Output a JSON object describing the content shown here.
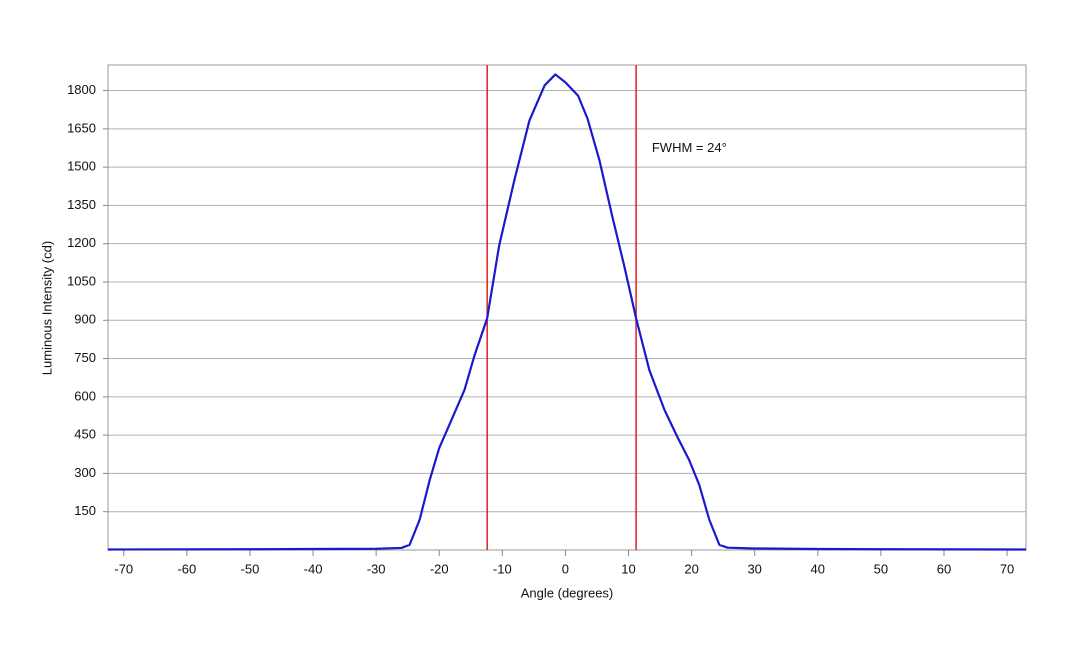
{
  "chart_data": {
    "type": "line",
    "x_label": "Angle (degrees)",
    "y_label": "Luminous Intensity (cd)",
    "x": [
      -72.5,
      -50,
      -40,
      -30,
      -26,
      -24.7,
      -23.1,
      -21.5,
      -20,
      -18.4,
      -16,
      -14.4,
      -12.4,
      -10.5,
      -8.1,
      -5.7,
      -3.3,
      -1.6,
      0,
      2,
      3.5,
      5.4,
      7.4,
      9.3,
      11.2,
      13.3,
      15.7,
      17.6,
      19.6,
      21.2,
      22.8,
      24.4,
      25.7,
      30,
      40,
      50,
      73
    ],
    "series": [
      {
        "color": "#1a1acc",
        "values": [
          2,
          3,
          4,
          5,
          8,
          20,
          119,
          275,
          400,
          490,
          627,
          763,
          908,
          1193,
          1448,
          1683,
          1820,
          1863,
          1832,
          1780,
          1690,
          1526,
          1310,
          1115,
          908,
          705,
          549,
          450,
          353,
          256,
          119,
          20,
          9,
          6,
          4,
          3,
          2
        ]
      }
    ],
    "xlim": [
      -72.5,
      73
    ],
    "ylim": [
      0,
      1900
    ],
    "xticks": [
      -70,
      -60,
      -50,
      -40,
      -30,
      -20,
      -10,
      0,
      10,
      20,
      30,
      40,
      50,
      60,
      70
    ],
    "yticks": [
      150,
      300,
      450,
      600,
      750,
      900,
      1050,
      1200,
      1350,
      1500,
      1650,
      1800
    ],
    "grid": true,
    "vlines": [
      {
        "x": -12.4,
        "color": "#dd2222"
      },
      {
        "x": 11.2,
        "color": "#dd2222"
      }
    ],
    "annotations": [
      {
        "text": "FWHM = 24°",
        "x": 13.7,
        "y": 1573
      }
    ]
  }
}
